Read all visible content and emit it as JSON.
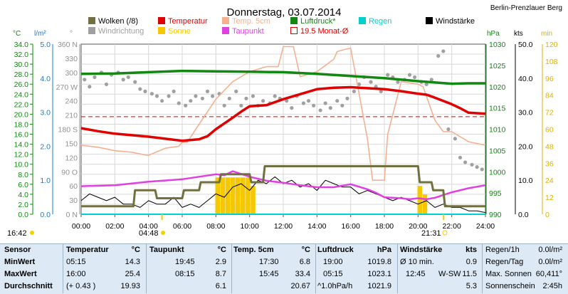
{
  "header": {
    "title": "Donnerstag, 03.07.2014",
    "station": "Berlin-Prenzlauer Berg"
  },
  "axes": {
    "temp_unit": "°C",
    "rain_unit": "l/m²",
    "dir_unit": "°",
    "pressure_unit": "hPa",
    "wind_unit": "kts",
    "sun_unit": "min",
    "temp_ticks": [
      "34.0",
      "32.0",
      "30.0",
      "28.0",
      "26.0",
      "24.0",
      "22.0",
      "20.0",
      "18.0",
      "16.0",
      "14.0",
      "12.0",
      "10.0",
      "8.0",
      "6.0",
      "4.0",
      "2.0",
      "0.0"
    ],
    "rain_ticks": [
      "5.0",
      "4.0",
      "3.0",
      "2.0",
      "1.0",
      "0.0"
    ],
    "dir_ticks": [
      "360 N",
      "330",
      "300",
      "270 W",
      "240",
      "210",
      "180 S",
      "150",
      "120",
      "90 O",
      "60",
      "30",
      "0 N"
    ],
    "pressure_ticks": [
      "1030",
      "1025",
      "1020",
      "1015",
      "1010",
      "1005",
      "1000",
      "995",
      "990"
    ],
    "wind_ticks": [
      "50.0",
      "40.0",
      "30.0",
      "20.0",
      "10.0",
      "0.0"
    ],
    "sun_ticks": [
      "120",
      "108",
      "96",
      "84",
      "72",
      "60",
      "48",
      "36",
      "24",
      "12",
      "0"
    ],
    "time_ticks": [
      "00:00",
      "02:00",
      "04:00",
      "06:00",
      "08:00",
      "10:00",
      "12:00",
      "14:00",
      "16:00",
      "18:00",
      "20:00",
      "22:00",
      "24:00"
    ]
  },
  "legend": [
    {
      "label": "Wolken (/8)",
      "color": "#707040",
      "icon": "square"
    },
    {
      "label": "Temperatur",
      "color": "#e00000",
      "icon": "square"
    },
    {
      "label": "Temp. 5cm",
      "color": "#f5b090",
      "icon": "square"
    },
    {
      "label": "Luftdruck*",
      "color": "#118811",
      "icon": "square"
    },
    {
      "label": "Regen",
      "color": "#00d0d0",
      "icon": "square"
    },
    {
      "label": "Windstärke",
      "color": "#000000",
      "icon": "square"
    },
    {
      "label": "Windrichtung",
      "color": "#a0a0a0",
      "icon": "square"
    },
    {
      "label": "Sonne",
      "color": "#f5c800",
      "icon": "square"
    },
    {
      "label": "Taupunkt",
      "color": "#e040e0",
      "icon": "square"
    },
    {
      "label": "19.5 Monat-Ø",
      "color": "#e00000",
      "icon": "outline"
    }
  ],
  "sun_times": {
    "sunrise_left": "16:42",
    "sunrise": "04:48",
    "sunset": "21:31"
  },
  "colors": {
    "temp_axis": "#0a8a0a",
    "rain_axis": "#1a7ad0",
    "dir_axis": "#909090",
    "pressure_axis": "#118811",
    "sun_axis": "#e0b000",
    "temp": "#e00000",
    "dew": "#e040e0",
    "soil": "#f5b090",
    "pressure": "#118811",
    "clouds": "#707040",
    "sun": "#f5c800",
    "wind": "#000000",
    "direction": "#a0a0a0"
  },
  "chart_data": {
    "type": "line",
    "x_unit": "hours",
    "xlim": [
      0,
      24
    ],
    "series": [
      {
        "name": "Temperatur",
        "axis": "temp",
        "x": [
          0,
          1,
          2,
          3,
          4,
          5,
          6,
          7,
          7.5,
          8,
          9,
          9.5,
          10,
          11,
          12,
          13,
          14,
          15,
          16,
          17,
          18,
          19,
          20,
          20.5,
          21,
          22,
          22.5,
          23,
          24
        ],
        "y": [
          17.2,
          16.6,
          16.1,
          15.8,
          15.5,
          15.1,
          14.7,
          15.0,
          15.6,
          17.0,
          19.3,
          20.5,
          21.6,
          21.8,
          23.0,
          24.0,
          25.0,
          25.3,
          25.4,
          25.2,
          25.0,
          24.6,
          24.1,
          23.9,
          23.3,
          22.0,
          21.2,
          20.3,
          20.1
        ]
      },
      {
        "name": "Temp. 5cm",
        "axis": "temp",
        "x": [
          0,
          1,
          2,
          3,
          3.9,
          4.0,
          5,
          5.8,
          6.0,
          6.3,
          7,
          7.5,
          8,
          9,
          10,
          11,
          11.7,
          12.0,
          12.6,
          13.0,
          14,
          15,
          15.2,
          15.7,
          16.0,
          17.0,
          17.3,
          18.0,
          18.2,
          19,
          20,
          20.3,
          21,
          21.5,
          22,
          23,
          24
        ],
        "y": [
          13.8,
          13.4,
          12.7,
          12.4,
          11.8,
          11.8,
          13.2,
          13.6,
          14.4,
          14.4,
          18.0,
          20.5,
          23.0,
          26.5,
          28.5,
          29.5,
          29.5,
          33.5,
          33.5,
          27.5,
          28.5,
          31.0,
          32.5,
          33.0,
          33.2,
          15.0,
          6.8,
          6.8,
          16.0,
          26.5,
          26.0,
          25.5,
          18.8,
          16.5,
          16.5,
          14.5,
          13.8
        ]
      },
      {
        "name": "Taupunkt",
        "axis": "temp",
        "x": [
          0,
          2,
          4,
          6,
          8,
          8.5,
          9,
          10,
          11,
          12,
          13,
          14,
          15,
          16,
          17,
          17.5,
          18,
          19,
          19.5,
          20,
          20.5,
          21,
          22,
          23,
          24
        ],
        "y": [
          5.6,
          5.8,
          6.5,
          7.0,
          8.0,
          7.8,
          8.6,
          7.5,
          6.7,
          6.3,
          5.8,
          5.4,
          5.4,
          6.0,
          5.0,
          4.3,
          3.4,
          3.2,
          3.0,
          3.2,
          3.0,
          3.3,
          4.4,
          5.2,
          5.8
        ]
      },
      {
        "name": "Luftdruck*",
        "axis": "pressure",
        "x": [
          0,
          2,
          4,
          6,
          8,
          10,
          12,
          14,
          16,
          18,
          20,
          22,
          23,
          24
        ],
        "y": [
          1023.0,
          1023.1,
          1023.4,
          1023.7,
          1023.6,
          1023.5,
          1023.4,
          1023.0,
          1022.5,
          1022.0,
          1021.3,
          1020.7,
          1020.8,
          1020.8
        ]
      },
      {
        "name": "Wolken (/8)",
        "axis": "clouds",
        "x": [
          0,
          3.1,
          3.2,
          4.4,
          4.5,
          6.0,
          6.1,
          7.0,
          7.1,
          8.2,
          8.3,
          10.0,
          10.1,
          10.8,
          10.9,
          12.0,
          13.0,
          14.0,
          15.0,
          16.0,
          17.0,
          18.0,
          19.0,
          20.0,
          20.1,
          20.8,
          20.9,
          21.5,
          21.6,
          24
        ],
        "y": [
          1,
          1,
          3,
          3,
          2,
          2,
          3,
          3,
          4,
          4,
          5,
          5,
          4,
          4,
          6,
          6,
          6,
          6,
          6,
          6,
          6,
          6,
          6,
          6,
          4,
          4,
          3,
          3,
          1,
          1
        ]
      },
      {
        "name": "Windstärke",
        "axis": "wind",
        "x": [
          0,
          0.5,
          1,
          1.5,
          2,
          2.5,
          3,
          3.5,
          4,
          4.5,
          5,
          5.5,
          6,
          6.5,
          7,
          7.5,
          8,
          8.5,
          9,
          9.5,
          10,
          10.5,
          11,
          11.5,
          12,
          12.5,
          13,
          13.5,
          14,
          14.5,
          15,
          15.5,
          16,
          16.5,
          17,
          17.5,
          18,
          18.5,
          19,
          19.5,
          20,
          20.5,
          21,
          21.5,
          22,
          22.5,
          23,
          23.5,
          24
        ],
        "y": [
          4,
          6,
          5,
          4,
          5,
          3,
          3,
          2,
          4,
          3,
          3,
          5,
          2,
          3,
          2,
          4,
          6,
          5,
          8,
          9,
          7,
          10,
          9,
          11,
          9,
          10,
          8,
          9,
          7,
          10,
          9,
          8,
          8,
          6,
          7,
          6,
          5,
          4,
          5,
          4,
          3,
          4,
          2,
          3,
          2,
          2,
          1,
          1,
          0.5
        ]
      },
      {
        "name": "Windrichtung",
        "axis": "direction",
        "x": [
          0.2,
          0.5,
          0.8,
          1.2,
          1.5,
          1.8,
          2.2,
          2.5,
          2.8,
          3.2,
          3.5,
          3.8,
          4.2,
          4.5,
          4.8,
          5.2,
          5.5,
          5.8,
          6.2,
          6.5,
          6.8,
          7.2,
          7.5,
          7.8,
          8.2,
          8.5,
          8.8,
          9.2,
          9.5,
          9.8,
          10.2,
          10.5,
          10.8,
          11.2,
          11.5,
          11.8,
          12.2,
          12.5,
          12.8,
          13.2,
          13.5,
          13.8,
          14.2,
          14.5,
          14.8,
          15.2,
          15.5,
          15.8,
          16.2,
          16.5,
          16.8,
          17.2,
          17.5,
          17.8,
          18.2,
          18.5,
          18.8,
          19.2,
          19.5,
          19.8,
          20.2,
          20.5,
          20.8,
          21.2,
          21.5,
          21.8,
          22.2,
          22.5,
          22.8,
          23.2,
          23.5,
          23.8
        ],
        "y": [
          285,
          270,
          290,
          300,
          275,
          295,
          300,
          285,
          290,
          280,
          265,
          260,
          255,
          250,
          240,
          250,
          260,
          235,
          230,
          240,
          250,
          245,
          260,
          250,
          255,
          230,
          245,
          260,
          230,
          245,
          250,
          230,
          240,
          235,
          250,
          245,
          240,
          225,
          250,
          235,
          240,
          230,
          220,
          235,
          225,
          240,
          230,
          245,
          260,
          275,
          290,
          280,
          270,
          260,
          295,
          290,
          280,
          285,
          295,
          290,
          280,
          275,
          285,
          335,
          345,
          180,
          160,
          120,
          110,
          105,
          100,
          95
        ]
      },
      {
        "name": "Sonne",
        "axis": "sun",
        "type": "bar",
        "x": [
          8.1,
          8.4,
          8.7,
          9.0,
          9.3,
          9.6,
          9.9,
          10.2,
          20.1,
          20.4
        ],
        "y": [
          26,
          26,
          26,
          26,
          26,
          26,
          26,
          20,
          20,
          14
        ]
      },
      {
        "name": "19.5 Monat-Ø",
        "axis": "temp",
        "type": "hline",
        "y": 19.5
      }
    ],
    "xlabel": "",
    "ylabel": ""
  },
  "stats": {
    "headers": {
      "sensor": "Sensor",
      "temp": "Temperatur",
      "temp_u": "°C",
      "dew": "Taupunkt",
      "dew_u": "°C",
      "soil": "Temp. 5cm",
      "soil_u": "°C",
      "pres": "Luftdruck",
      "pres_u": "hPa",
      "wind": "Windstärke",
      "wind_u": "kts"
    },
    "rows": [
      {
        "label": "MinWert",
        "temp_t": "05:15",
        "temp_v": "14.3",
        "dew_t": "19:45",
        "dew_v": "2.9",
        "soil_t": "17:30",
        "soil_v": "6.8",
        "pres_t": "19:00",
        "pres_v": "1019.8",
        "wind_t": "Ø 10 min.",
        "wind_m": "",
        "wind_v": "0.9"
      },
      {
        "label": "MaxWert",
        "temp_t": "16:00",
        "temp_v": "25.4",
        "dew_t": "08:15",
        "dew_v": "8.7",
        "soil_t": "15:45",
        "soil_v": "33.4",
        "pres_t": "05:15",
        "pres_v": "1023.1",
        "wind_t": "12:45",
        "wind_m": "W-SW",
        "wind_v": "11.5"
      },
      {
        "label": "Durchschnitt",
        "temp_t": "(+ 0.43 )",
        "temp_v": "19.93",
        "dew_t": "",
        "dew_v": "6.1",
        "soil_t": "",
        "soil_v": "20.67",
        "pres_t": "^1.0hPa/h",
        "pres_v": "1021.9",
        "wind_t": "",
        "wind_m": "",
        "wind_v": "5.3"
      }
    ],
    "right": [
      {
        "label": "Regen/1h",
        "value": "0.0l/m²"
      },
      {
        "label": "Regen/Tag",
        "value": "0.0l/m²"
      },
      {
        "label": "Max. Sonnen",
        "value": "60,411°"
      },
      {
        "label": "Sonnenschein",
        "value": "2:45h"
      }
    ]
  }
}
